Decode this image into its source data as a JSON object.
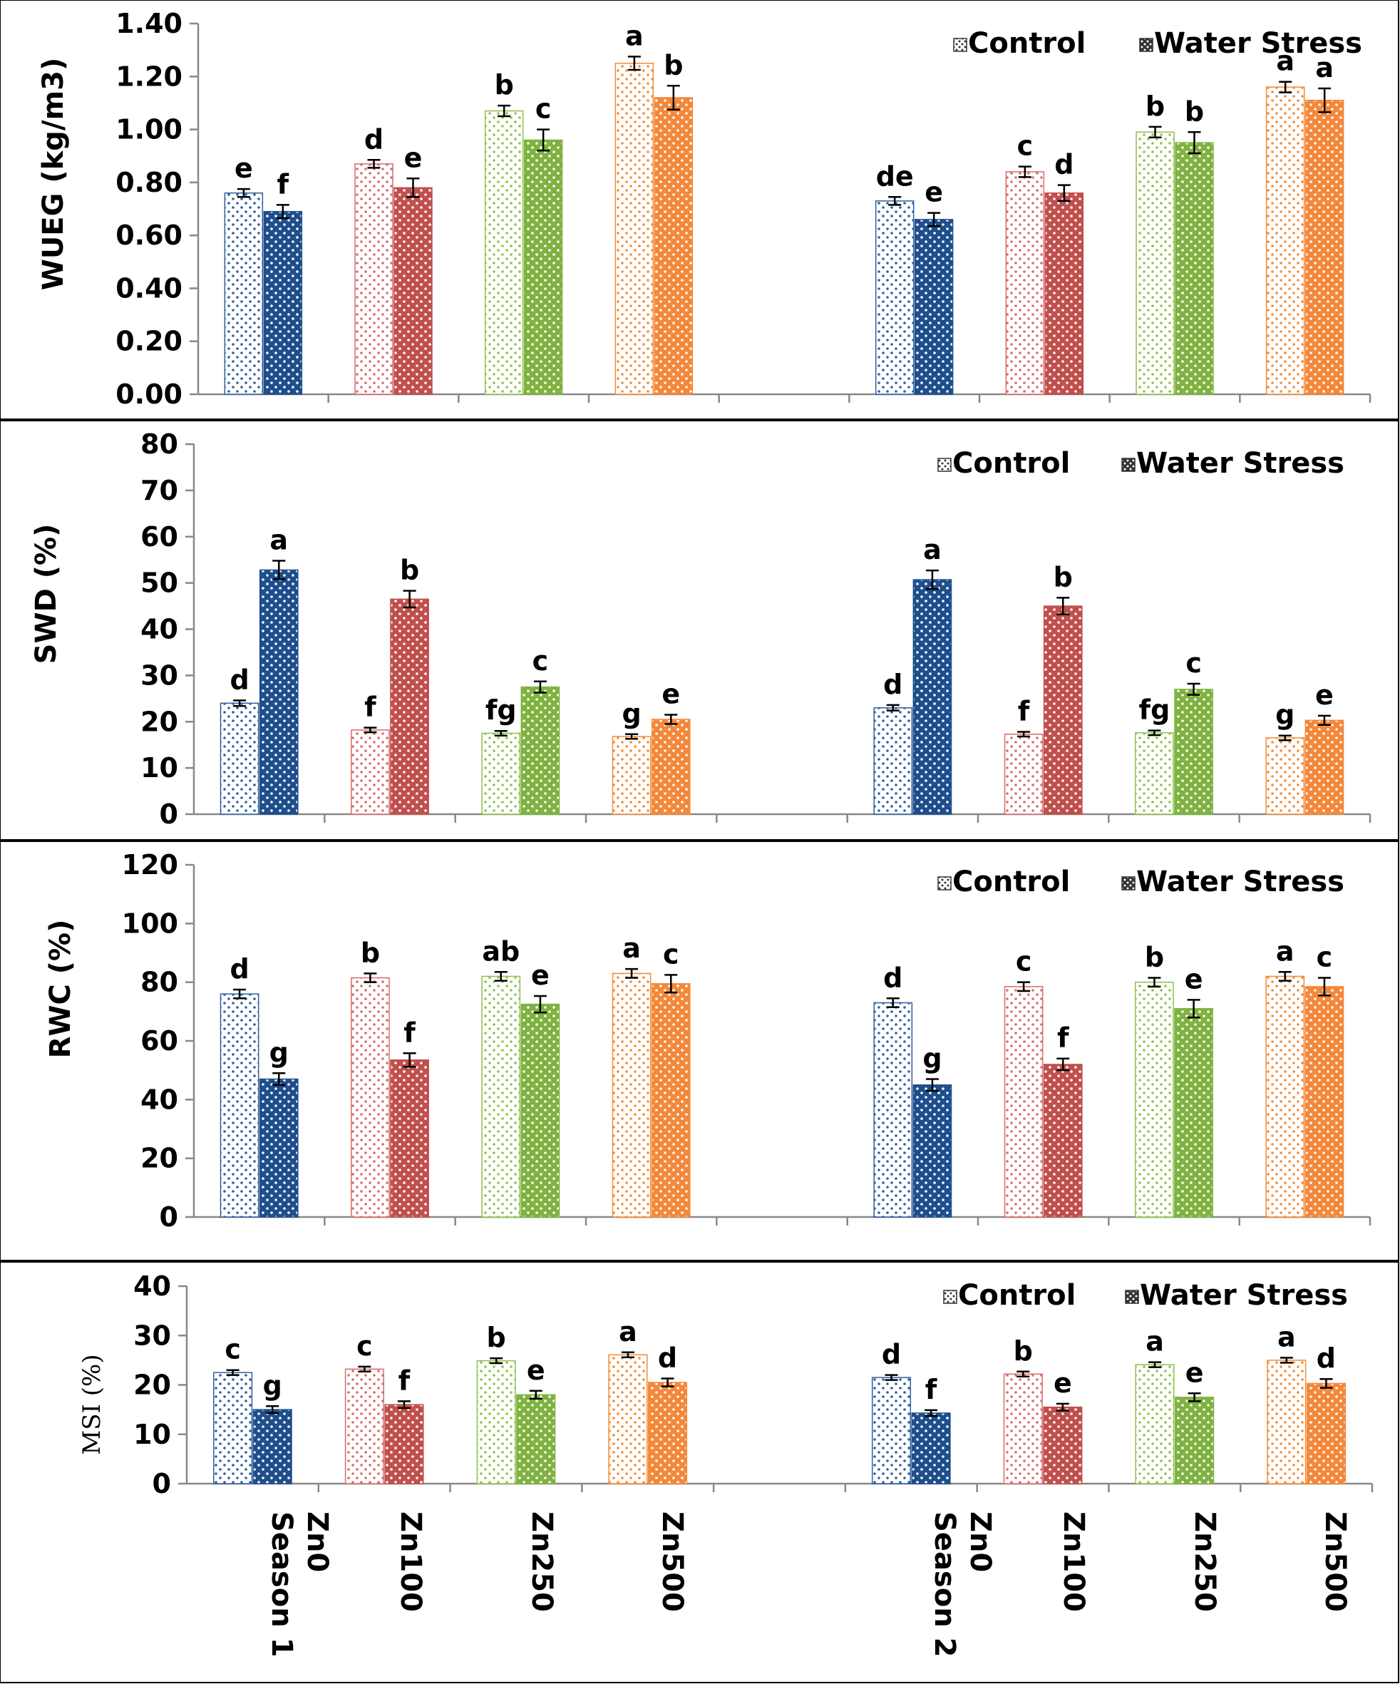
{
  "legend": {
    "control": "Control",
    "stress": "Water Stress"
  },
  "categories": [
    "Zn0",
    "Zn100",
    "Zn250",
    "Zn500",
    "Zn0",
    "Zn100",
    "Zn250",
    "Zn500"
  ],
  "seasons": [
    "Season 1",
    "Season 2"
  ],
  "colors": {
    "control": [
      "#2f5f9e",
      "#d96b6b",
      "#8fc24a",
      "#f28c38"
    ],
    "stress": [
      "#1f4e8c",
      "#c0504d",
      "#7fb241",
      "#f4883a"
    ]
  },
  "chart_data": [
    {
      "type": "bar",
      "ylabel": "WUEG (kg/m3)",
      "ylim": [
        0,
        1.4
      ],
      "yticks": [
        "0.00",
        "0.20",
        "0.40",
        "0.60",
        "0.80",
        "1.00",
        "1.20",
        "1.40"
      ],
      "series": [
        {
          "name": "Control",
          "values": [
            0.76,
            0.87,
            1.07,
            1.25,
            0.73,
            0.84,
            0.99,
            1.16
          ],
          "errors": [
            0.015,
            0.015,
            0.02,
            0.025,
            0.015,
            0.02,
            0.02,
            0.02
          ],
          "letters": [
            "e",
            "d",
            "b",
            "a",
            "de",
            "c",
            "b",
            "a"
          ]
        },
        {
          "name": "Water Stress",
          "values": [
            0.69,
            0.78,
            0.96,
            1.12,
            0.66,
            0.76,
            0.95,
            1.11
          ],
          "errors": [
            0.025,
            0.035,
            0.04,
            0.045,
            0.025,
            0.03,
            0.04,
            0.045
          ],
          "letters": [
            "f",
            "e",
            "c",
            "b",
            "e",
            "d",
            "b",
            "a"
          ]
        }
      ]
    },
    {
      "type": "bar",
      "ylabel": "SWD (%)",
      "ylim": [
        0,
        80
      ],
      "yticks": [
        "0",
        "10",
        "20",
        "30",
        "40",
        "50",
        "60",
        "70",
        "80"
      ],
      "series": [
        {
          "name": "Control",
          "values": [
            24,
            18.2,
            17.5,
            16.8,
            23,
            17.3,
            17.6,
            16.5
          ],
          "errors": [
            0.6,
            0.5,
            0.5,
            0.5,
            0.6,
            0.5,
            0.5,
            0.5
          ],
          "letters": [
            "d",
            "f",
            "fg",
            "g",
            "d",
            "f",
            "fg",
            "g"
          ]
        },
        {
          "name": "Water Stress",
          "values": [
            52.8,
            46.5,
            27.5,
            20.5,
            50.7,
            45,
            27,
            20.3
          ],
          "errors": [
            2.0,
            1.8,
            1.2,
            1.0,
            2.0,
            1.8,
            1.2,
            1.0
          ],
          "letters": [
            "a",
            "b",
            "c",
            "e",
            "a",
            "b",
            "c",
            "e"
          ]
        }
      ]
    },
    {
      "type": "bar",
      "ylabel": "RWC (%)",
      "ylim": [
        0,
        120
      ],
      "yticks": [
        "0",
        "20",
        "40",
        "60",
        "80",
        "100",
        "120"
      ],
      "series": [
        {
          "name": "Control",
          "values": [
            76,
            81.5,
            82,
            83,
            73,
            78.5,
            80,
            82
          ],
          "errors": [
            1.5,
            1.5,
            1.5,
            1.5,
            1.5,
            1.5,
            1.5,
            1.5
          ],
          "letters": [
            "d",
            "b",
            "ab",
            "a",
            "d",
            "c",
            "b",
            "a"
          ]
        },
        {
          "name": "Water Stress",
          "values": [
            47,
            53.5,
            72.5,
            79.5,
            45,
            52,
            71,
            78.5
          ],
          "errors": [
            2.0,
            2.3,
            2.8,
            3.0,
            2.0,
            2.0,
            3.0,
            3.0
          ],
          "letters": [
            "g",
            "f",
            "e",
            "c",
            "g",
            "f",
            "e",
            "c"
          ]
        }
      ]
    },
    {
      "type": "bar",
      "ylabel": "MSI (%)",
      "ylim": [
        0,
        40
      ],
      "yticks": [
        "0",
        "10",
        "20",
        "30",
        "40"
      ],
      "series": [
        {
          "name": "Control",
          "values": [
            22.5,
            23.2,
            24.9,
            26.1,
            21.5,
            22.2,
            24.1,
            25
          ],
          "errors": [
            0.5,
            0.5,
            0.5,
            0.5,
            0.5,
            0.5,
            0.5,
            0.5
          ],
          "letters": [
            "c",
            "c",
            "b",
            "a",
            "d",
            "b",
            "a",
            "a"
          ]
        },
        {
          "name": "Water Stress",
          "values": [
            15,
            16,
            18,
            20.5,
            14.3,
            15.5,
            17.5,
            20.3
          ],
          "errors": [
            0.7,
            0.7,
            0.8,
            0.8,
            0.6,
            0.7,
            0.8,
            0.9
          ],
          "letters": [
            "g",
            "f",
            "e",
            "d",
            "f",
            "e",
            "e",
            "d"
          ]
        }
      ]
    }
  ]
}
